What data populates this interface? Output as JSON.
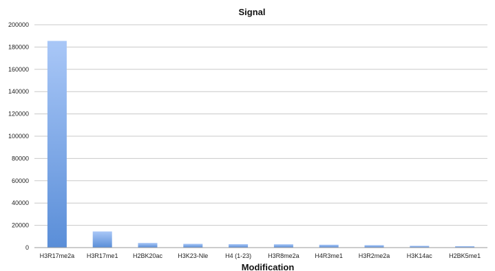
{
  "chart_data": {
    "type": "bar",
    "title": "Signal",
    "xlabel": "Modification",
    "ylabel": "",
    "categories": [
      "H3R17me2a",
      "H3R17me1",
      "H2BK20ac",
      "H3K23-Nle",
      "H4 (1-23)",
      "H3R8me2a",
      "H4R3me1",
      "H3R2me2a",
      "H3K14ac",
      "H2BK5me1"
    ],
    "values": [
      185500,
      14500,
      4200,
      3400,
      3100,
      3000,
      2600,
      2200,
      1600,
      1300
    ],
    "ylim": [
      0,
      200000
    ],
    "yticks": [
      0,
      20000,
      40000,
      60000,
      80000,
      100000,
      120000,
      140000,
      160000,
      180000,
      200000
    ],
    "grid": true,
    "legend": "none",
    "colors": {
      "bar_top": "#a9c7f7",
      "bar_bottom": "#5a8ed8",
      "grid": "#c8c8c8"
    }
  }
}
